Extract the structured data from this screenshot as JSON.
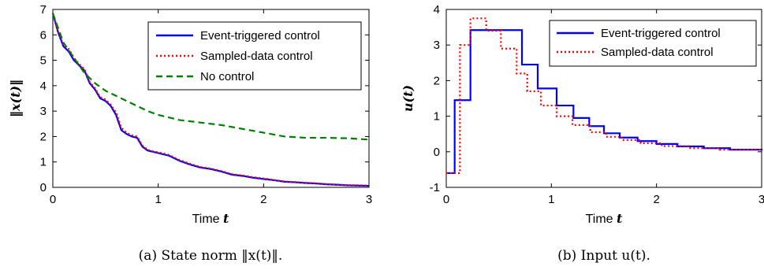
{
  "figure": {
    "caption_a": "(a) State norm ‖x(t)‖.",
    "caption_b": "(b) Input u(t)."
  },
  "colors": {
    "event": "#0000ff",
    "sampled": "#ff0000",
    "nocontrol": "#008000"
  },
  "chart_data": [
    {
      "type": "line",
      "title": "",
      "xlabel_text": "Time",
      "xlabel_var": "t",
      "ylabel": "‖x(t)‖",
      "xlim": [
        0,
        3
      ],
      "ylim": [
        0,
        7
      ],
      "xticks": [
        "0",
        "1",
        "2",
        "3"
      ],
      "yticks": [
        "0",
        "1",
        "2",
        "3",
        "4",
        "5",
        "6",
        "7"
      ],
      "legend_position": "top-right",
      "series": [
        {
          "name": "Event-triggered control",
          "style": "solid",
          "x": [
            0,
            0.05,
            0.1,
            0.15,
            0.2,
            0.25,
            0.3,
            0.35,
            0.4,
            0.45,
            0.5,
            0.55,
            0.6,
            0.65,
            0.7,
            0.75,
            0.8,
            0.85,
            0.9,
            0.95,
            1.0,
            1.1,
            1.2,
            1.3,
            1.4,
            1.5,
            1.6,
            1.7,
            1.8,
            1.9,
            2.0,
            2.1,
            2.2,
            2.3,
            2.4,
            2.5,
            2.6,
            2.7,
            2.8,
            2.9,
            3.0
          ],
          "y": [
            6.85,
            6.1,
            5.55,
            5.35,
            5.0,
            4.8,
            4.6,
            4.1,
            3.85,
            3.5,
            3.4,
            3.2,
            2.85,
            2.25,
            2.1,
            2.0,
            1.95,
            1.6,
            1.45,
            1.4,
            1.35,
            1.25,
            1.05,
            0.9,
            0.78,
            0.72,
            0.62,
            0.5,
            0.45,
            0.38,
            0.33,
            0.28,
            0.22,
            0.2,
            0.17,
            0.15,
            0.12,
            0.1,
            0.08,
            0.07,
            0.06
          ]
        },
        {
          "name": "Sampled-data control",
          "style": "dotted",
          "x": [
            0,
            0.05,
            0.1,
            0.15,
            0.2,
            0.25,
            0.3,
            0.35,
            0.4,
            0.45,
            0.5,
            0.55,
            0.6,
            0.65,
            0.7,
            0.75,
            0.8,
            0.85,
            0.9,
            0.95,
            1.0,
            1.1,
            1.2,
            1.3,
            1.4,
            1.5,
            1.6,
            1.7,
            1.8,
            1.9,
            2.0,
            2.1,
            2.2,
            2.3,
            2.4,
            2.5,
            2.6,
            2.7,
            2.8,
            2.9,
            3.0
          ],
          "y": [
            6.85,
            6.15,
            5.6,
            5.45,
            5.1,
            4.85,
            4.65,
            4.15,
            3.9,
            3.55,
            3.45,
            3.25,
            2.95,
            2.35,
            2.15,
            2.05,
            2.0,
            1.65,
            1.48,
            1.42,
            1.38,
            1.28,
            1.08,
            0.93,
            0.8,
            0.74,
            0.64,
            0.52,
            0.47,
            0.4,
            0.35,
            0.29,
            0.23,
            0.21,
            0.18,
            0.16,
            0.13,
            0.11,
            0.09,
            0.08,
            0.07
          ]
        },
        {
          "name": "No control",
          "style": "dashed",
          "x": [
            0,
            0.1,
            0.2,
            0.3,
            0.4,
            0.5,
            0.6,
            0.7,
            0.8,
            0.9,
            1.0,
            1.2,
            1.4,
            1.6,
            1.8,
            2.0,
            2.2,
            2.4,
            2.6,
            2.8,
            3.0
          ],
          "y": [
            6.85,
            5.7,
            5.1,
            4.5,
            4.1,
            3.8,
            3.6,
            3.4,
            3.2,
            3.0,
            2.85,
            2.65,
            2.55,
            2.45,
            2.3,
            2.15,
            2.0,
            1.95,
            1.95,
            1.93,
            1.88
          ]
        }
      ]
    },
    {
      "type": "line",
      "title": "",
      "xlabel_text": "Time",
      "xlabel_var": "t",
      "ylabel": "u(t)",
      "xlim": [
        0,
        3
      ],
      "ylim": [
        -1,
        4
      ],
      "xticks": [
        "0",
        "1",
        "2",
        "3"
      ],
      "yticks": [
        "-1",
        "0",
        "1",
        "2",
        "3",
        "4"
      ],
      "legend_position": "top-right",
      "series": [
        {
          "name": "Event-triggered control",
          "style": "solid",
          "step": true,
          "x": [
            0,
            0.08,
            0.23,
            0.72,
            0.87,
            1.05,
            1.21,
            1.36,
            1.5,
            1.65,
            1.82,
            2.0,
            2.2,
            2.45,
            2.7,
            3.0
          ],
          "y": [
            -0.6,
            1.45,
            3.42,
            2.45,
            1.78,
            1.3,
            0.95,
            0.72,
            0.52,
            0.4,
            0.3,
            0.22,
            0.15,
            0.1,
            0.06,
            0.04
          ]
        },
        {
          "name": "Sampled-data control",
          "style": "dotted",
          "step": true,
          "x": [
            0,
            0.13,
            0.23,
            0.38,
            0.52,
            0.67,
            0.77,
            0.9,
            1.05,
            1.2,
            1.37,
            1.52,
            1.67,
            1.85,
            2.05,
            2.3,
            2.6,
            3.0
          ],
          "y": [
            -0.6,
            3.0,
            3.75,
            3.4,
            2.9,
            2.2,
            1.7,
            1.3,
            1.0,
            0.75,
            0.55,
            0.42,
            0.33,
            0.24,
            0.16,
            0.1,
            0.06,
            0.04
          ]
        }
      ]
    }
  ]
}
